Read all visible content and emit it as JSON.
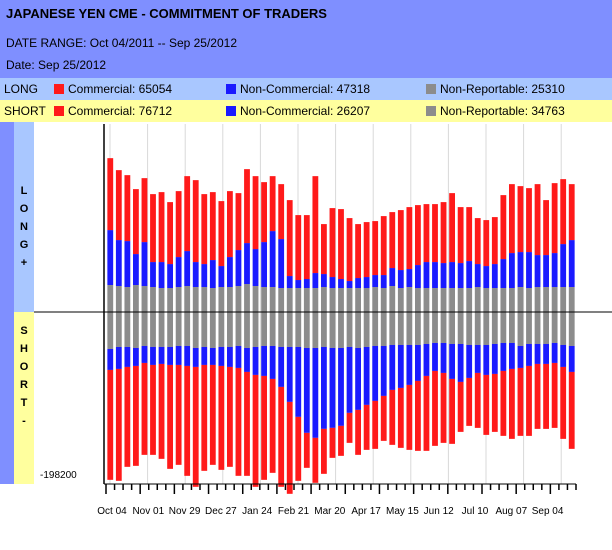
{
  "header": {
    "title": "JAPANESE YEN CME - COMMITMENT OF TRADERS",
    "date_range": "DATE RANGE: Oct 04/2011 -- Sep 25/2012",
    "date": "Date: Sep 25/2012"
  },
  "legend": {
    "long": {
      "label": "LONG",
      "commercial": "Commercial: 65054",
      "noncommercial": "Non-Commercial: 47318",
      "nonreportable": "Non-Reportable: 25310"
    },
    "short": {
      "label": "SHORT",
      "commercial": "Commercial: 76712",
      "noncommercial": "Non-Commercial: 26207",
      "nonreportable": "Non-Reportable: 34763"
    }
  },
  "side_labels": {
    "long": [
      "L",
      "O",
      "N",
      "G",
      "+"
    ],
    "short": [
      "S",
      "H",
      "O",
      "R",
      "T",
      "-"
    ]
  },
  "min_label": "-198200",
  "colors": {
    "commercial": "#ff1a1a",
    "noncommercial": "#1a1aff",
    "nonreportable": "#8c8c8c",
    "long_band": "#a9c7ff",
    "short_band": "#ffff9e",
    "header_bg": "#7f8fff"
  },
  "chart_data": {
    "type": "bar",
    "stacked": true,
    "ylim": [
      -198200,
      198200
    ],
    "x_tick_labels": [
      "Oct 04",
      "Nov 01",
      "Nov 29",
      "Dec 27",
      "Jan 24",
      "Feb 21",
      "Mar 20",
      "Apr 17",
      "May 15",
      "Jun 12",
      "Jul 10",
      "Aug 07",
      "Sep 04"
    ],
    "series": [
      {
        "name": "Commercial",
        "group": "long",
        "values": [
          72000,
          70000,
          66000,
          65000,
          64000,
          68000,
          70000,
          62000,
          66000,
          75000,
          82000,
          70000,
          68000,
          65000,
          66000,
          57000,
          74000,
          73000,
          60000,
          55000,
          55000,
          76000,
          65000,
          64000,
          97000,
          50000,
          69000,
          70000,
          63000,
          54000,
          55000,
          54000,
          59000,
          56000,
          60000,
          62000,
          60000,
          58000,
          58000,
          61000,
          69000,
          56000,
          54000,
          46000,
          46000,
          47000,
          64000,
          69000,
          66000,
          64000,
          71000,
          55000,
          70000,
          65000,
          56000
        ]
      },
      {
        "name": "Non-Commercial",
        "group": "long",
        "values": [
          55000,
          46000,
          46000,
          31000,
          44000,
          25000,
          26000,
          24000,
          30000,
          35000,
          25000,
          23000,
          28000,
          21000,
          30000,
          36000,
          41000,
          37000,
          45000,
          56000,
          49000,
          12000,
          8000,
          9000,
          15000,
          13000,
          11000,
          9000,
          7000,
          10000,
          11000,
          12000,
          13000,
          18000,
          18000,
          18000,
          23000,
          26000,
          26000,
          25000,
          26000,
          25000,
          27000,
          23000,
          22000,
          24000,
          29000,
          35000,
          35000,
          36000,
          32000,
          32000,
          34000,
          43000,
          47000
        ]
      },
      {
        "name": "Non-Reportable",
        "group": "long",
        "values": [
          27000,
          26000,
          25000,
          27000,
          26000,
          25000,
          24000,
          24000,
          25000,
          26000,
          25000,
          25000,
          24000,
          25000,
          25000,
          26000,
          28000,
          26000,
          25000,
          25000,
          24000,
          24000,
          24000,
          24000,
          24000,
          25000,
          24000,
          24000,
          24000,
          24000,
          24000,
          25000,
          24000,
          26000,
          24000,
          25000,
          24000,
          24000,
          24000,
          24000,
          24000,
          24000,
          24000,
          25000,
          24000,
          24000,
          24000,
          24000,
          25000,
          24000,
          25000,
          25000,
          25000,
          25000,
          25000
        ]
      },
      {
        "name": "Non-Reportable",
        "group": "short",
        "values": [
          37000,
          35000,
          35000,
          36000,
          34000,
          35000,
          35000,
          35000,
          34000,
          34000,
          36000,
          35000,
          36000,
          35000,
          35000,
          34000,
          36000,
          35000,
          34000,
          34000,
          35000,
          35000,
          35000,
          36000,
          36000,
          35000,
          36000,
          36000,
          35000,
          36000,
          35000,
          34000,
          34000,
          33000,
          33000,
          33000,
          33000,
          32000,
          31000,
          31000,
          32000,
          32000,
          33000,
          33000,
          33000,
          32000,
          31000,
          31000,
          34000,
          32000,
          32000,
          32000,
          31000,
          33000,
          34000
        ]
      },
      {
        "name": "Non-Commercial",
        "group": "short",
        "values": [
          21000,
          22000,
          20000,
          18000,
          17000,
          18000,
          17000,
          18000,
          19000,
          20000,
          19000,
          18000,
          17000,
          19000,
          20000,
          22000,
          24000,
          28000,
          30000,
          33000,
          40000,
          55000,
          70000,
          85000,
          90000,
          82000,
          80000,
          78000,
          66000,
          62000,
          58000,
          55000,
          50000,
          45000,
          43000,
          40000,
          36000,
          32000,
          28000,
          30000,
          35000,
          38000,
          33000,
          28000,
          30000,
          30000,
          28000,
          26000,
          22000,
          22000,
          20000,
          20000,
          20000,
          22000,
          26000
        ]
      },
      {
        "name": "Commercial",
        "group": "short",
        "values": [
          110000,
          112000,
          100000,
          100000,
          92000,
          90000,
          95000,
          104000,
          100000,
          110000,
          120000,
          106000,
          100000,
          104000,
          100000,
          108000,
          104000,
          112000,
          104000,
          94000,
          100000,
          92000,
          64000,
          35000,
          45000,
          45000,
          30000,
          30000,
          30000,
          45000,
          45000,
          48000,
          45000,
          55000,
          60000,
          65000,
          70000,
          75000,
          75000,
          70000,
          65000,
          50000,
          48000,
          55000,
          60000,
          58000,
          65000,
          70000,
          68000,
          70000,
          65000,
          65000,
          65000,
          72000,
          77000
        ]
      }
    ]
  }
}
